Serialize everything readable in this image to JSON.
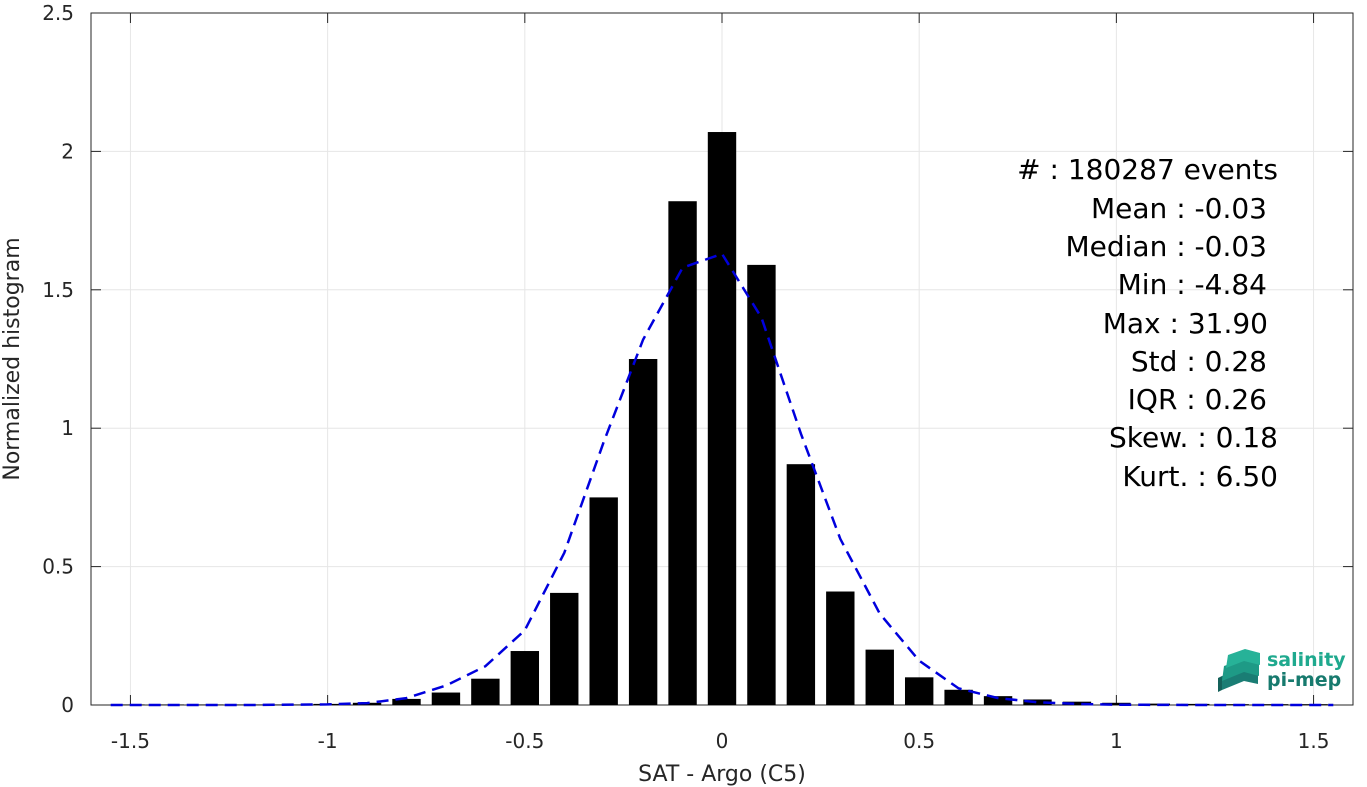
{
  "chart_data": {
    "type": "bar",
    "xlabel": "SAT - Argo (C5)",
    "ylabel": "Normalized histogram",
    "xlim": [
      -1.6,
      1.6
    ],
    "ylim": [
      0,
      2.5
    ],
    "xticks": [
      "-1.5",
      "-1",
      "-0.5",
      "0",
      "0.5",
      "1",
      "1.5"
    ],
    "xtick_values": [
      -1.5,
      -1,
      -0.5,
      0,
      0.5,
      1,
      1.5
    ],
    "yticks": [
      "0",
      "0.5",
      "1",
      "1.5",
      "2",
      "2.5"
    ],
    "ytick_values": [
      0,
      0.5,
      1,
      1.5,
      2,
      2.5
    ],
    "grid": true,
    "bar_color": "#000000",
    "bins": {
      "centers": [
        -1.5,
        -1.4,
        -1.3,
        -1.2,
        -1.1,
        -1.0,
        -0.9,
        -0.8,
        -0.7,
        -0.6,
        -0.5,
        -0.4,
        -0.3,
        -0.2,
        -0.1,
        0.0,
        0.1,
        0.2,
        0.3,
        0.4,
        0.5,
        0.6,
        0.7,
        0.8,
        0.9,
        1.0,
        1.1,
        1.2,
        1.3,
        1.4,
        1.5
      ],
      "values": [
        0.002,
        0.002,
        0.002,
        0.002,
        0.002,
        0.004,
        0.008,
        0.022,
        0.045,
        0.095,
        0.195,
        0.405,
        0.75,
        1.25,
        1.82,
        2.07,
        1.59,
        0.87,
        0.41,
        0.2,
        0.1,
        0.055,
        0.032,
        0.02,
        0.012,
        0.008,
        0.005,
        0.004,
        0.003,
        0.003,
        0.003
      ]
    },
    "fit_series": {
      "name": "",
      "color": "#0000dd",
      "style": "dashed",
      "x": [
        -1.55,
        -1.4,
        -1.2,
        -1.0,
        -0.9,
        -0.8,
        -0.7,
        -0.6,
        -0.5,
        -0.4,
        -0.3,
        -0.2,
        -0.1,
        0.0,
        0.1,
        0.2,
        0.3,
        0.4,
        0.5,
        0.6,
        0.7,
        0.8,
        0.9,
        1.0,
        1.2,
        1.4,
        1.55
      ],
      "y": [
        0.0,
        0.0,
        0.0,
        0.002,
        0.007,
        0.025,
        0.07,
        0.14,
        0.27,
        0.55,
        0.95,
        1.32,
        1.58,
        1.63,
        1.4,
        0.98,
        0.6,
        0.33,
        0.16,
        0.06,
        0.025,
        0.01,
        0.004,
        0.001,
        0.0,
        0.0,
        0.0
      ]
    }
  },
  "stats": [
    "#  : 180287 events",
    "Mean : -0.03",
    "Median : -0.03",
    "Min : -4.84",
    "Max : 31.90",
    "Std : 0.28",
    "IQR : 0.26",
    "Skew. : 0.18",
    "Kurt. : 6.50"
  ],
  "logo": {
    "line1": "salinity",
    "line2": "pi-mep",
    "color1": "#1fa98e",
    "color2": "#177a6e"
  }
}
